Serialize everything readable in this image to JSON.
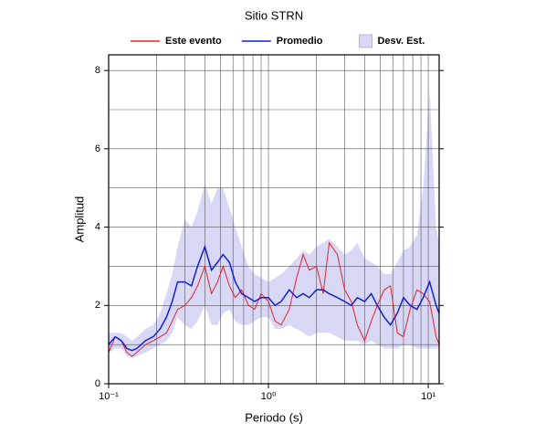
{
  "chart_data": {
    "type": "line",
    "title": "Sitio STRN",
    "x_label": "Periodo (s)",
    "y_label": "Amplitud",
    "log_x": true,
    "grid": true,
    "xlim": [
      0.1,
      11.7
    ],
    "ylim": [
      0,
      8.4
    ],
    "xticks": [
      {
        "value": 0.1,
        "label": "10⁻¹"
      },
      {
        "value": 1,
        "label": "10⁰"
      },
      {
        "value": 10,
        "label": "10¹"
      }
    ],
    "xminor": [
      0.2,
      0.3,
      0.4,
      0.5,
      0.6,
      0.7,
      0.8,
      0.9,
      2,
      3,
      4,
      5,
      6,
      7,
      8,
      9
    ],
    "yticks": [
      0,
      2,
      4,
      6,
      8
    ],
    "yminor": [
      1,
      3,
      5,
      7
    ],
    "x": [
      0.1,
      0.11,
      0.12,
      0.13,
      0.14,
      0.15,
      0.17,
      0.19,
      0.21,
      0.23,
      0.25,
      0.27,
      0.3,
      0.33,
      0.36,
      0.4,
      0.44,
      0.48,
      0.52,
      0.57,
      0.62,
      0.68,
      0.75,
      0.82,
      0.9,
      1.0,
      1.1,
      1.2,
      1.35,
      1.5,
      1.65,
      1.8,
      2.0,
      2.2,
      2.4,
      2.7,
      3.0,
      3.3,
      3.6,
      4.0,
      4.4,
      4.8,
      5.3,
      5.8,
      6.4,
      7.0,
      7.7,
      8.5,
      9.3,
      10.2,
      11.2,
      11.7
    ],
    "series": [
      {
        "name": "Este evento",
        "color": "#e8202a",
        "values": [
          0.8,
          1.2,
          1.1,
          0.8,
          0.7,
          0.8,
          1.0,
          1.1,
          1.2,
          1.3,
          1.6,
          1.9,
          2.0,
          2.2,
          2.5,
          3.0,
          2.3,
          2.6,
          3.0,
          2.5,
          2.2,
          2.4,
          2.0,
          1.9,
          2.3,
          2.1,
          1.6,
          1.5,
          1.9,
          2.7,
          3.3,
          2.9,
          3.0,
          2.3,
          3.6,
          3.3,
          2.4,
          2.1,
          1.5,
          1.1,
          1.6,
          2.0,
          2.4,
          2.5,
          1.3,
          1.2,
          1.9,
          2.4,
          2.3,
          2.1,
          1.2,
          1.0
        ]
      },
      {
        "name": "Promedio",
        "color": "#1420d0",
        "values": [
          1.0,
          1.2,
          1.1,
          0.9,
          0.85,
          0.9,
          1.1,
          1.2,
          1.4,
          1.7,
          2.1,
          2.6,
          2.6,
          2.5,
          3.0,
          3.5,
          2.9,
          3.1,
          3.3,
          3.1,
          2.6,
          2.3,
          2.2,
          2.1,
          2.2,
          2.2,
          2.0,
          2.1,
          2.4,
          2.2,
          2.3,
          2.2,
          2.4,
          2.4,
          2.3,
          2.2,
          2.1,
          2.0,
          2.2,
          2.1,
          2.3,
          2.0,
          1.7,
          1.5,
          1.8,
          2.2,
          2.0,
          1.9,
          2.2,
          2.6,
          2.0,
          1.8
        ]
      },
      {
        "name": "Desv. Est.",
        "color": "#d8d8f6",
        "upper": [
          1.3,
          1.3,
          1.3,
          1.2,
          1.1,
          1.2,
          1.4,
          1.5,
          1.8,
          2.3,
          2.8,
          3.5,
          4.2,
          4.0,
          4.4,
          5.1,
          4.6,
          5.0,
          5.0,
          4.5,
          4.0,
          3.5,
          3.0,
          2.8,
          2.7,
          2.6,
          2.7,
          2.8,
          3.0,
          3.2,
          3.4,
          3.3,
          3.5,
          3.6,
          3.7,
          3.5,
          3.3,
          3.4,
          3.6,
          3.2,
          3.1,
          3.0,
          2.8,
          2.8,
          3.1,
          3.4,
          3.5,
          3.8,
          5.0,
          7.5,
          4.0,
          3.6
        ],
        "lower": [
          0.8,
          0.9,
          0.9,
          0.7,
          0.7,
          0.7,
          0.8,
          0.9,
          1.0,
          1.1,
          1.3,
          1.7,
          1.5,
          1.4,
          1.6,
          2.0,
          1.5,
          1.5,
          1.8,
          1.9,
          1.6,
          1.5,
          1.5,
          1.6,
          1.7,
          1.7,
          1.4,
          1.4,
          1.5,
          1.4,
          1.3,
          1.2,
          1.3,
          1.3,
          1.3,
          1.2,
          1.1,
          1.1,
          1.1,
          1.0,
          1.1,
          1.0,
          0.9,
          0.9,
          0.9,
          1.0,
          1.0,
          0.9,
          0.9,
          0.9,
          0.9,
          0.9
        ]
      }
    ]
  }
}
